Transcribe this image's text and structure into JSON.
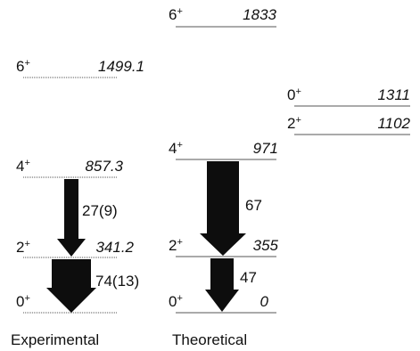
{
  "colors": {
    "ink": "#111111",
    "line": "#555555",
    "arrow": "#0d0d0d"
  },
  "panels": {
    "experimental": {
      "caption": "Experimental",
      "levels": [
        {
          "spin": "0",
          "parity": "+",
          "energy": "",
          "energy_value": 0
        },
        {
          "spin": "2",
          "parity": "+",
          "energy": "341.2",
          "energy_value": 341.2
        },
        {
          "spin": "4",
          "parity": "+",
          "energy": "857.3",
          "energy_value": 857.3
        },
        {
          "spin": "6",
          "parity": "+",
          "energy": "1499.1",
          "energy_value": 1499.1
        }
      ],
      "transitions": [
        {
          "from": "2+",
          "to": "0+",
          "be2": "74(13)",
          "be2_value": 74
        },
        {
          "from": "4+",
          "to": "2+",
          "be2": "27(9)",
          "be2_value": 27
        }
      ]
    },
    "theoretical": {
      "caption": "Theoretical",
      "levels": [
        {
          "spin": "0",
          "parity": "+",
          "energy": "0",
          "energy_value": 0
        },
        {
          "spin": "2",
          "parity": "+",
          "energy": "355",
          "energy_value": 355
        },
        {
          "spin": "4",
          "parity": "+",
          "energy": "971",
          "energy_value": 971
        },
        {
          "spin": "6",
          "parity": "+",
          "energy": "1833",
          "energy_value": 1833
        }
      ],
      "transitions": [
        {
          "from": "2+",
          "to": "0+",
          "be2": "47",
          "be2_value": 47
        },
        {
          "from": "4+",
          "to": "2+",
          "be2": "67",
          "be2_value": 67
        }
      ]
    },
    "theoretical_side": {
      "levels": [
        {
          "spin": "2",
          "parity": "+",
          "energy": "1102",
          "energy_value": 1102
        },
        {
          "spin": "0",
          "parity": "+",
          "energy": "1311",
          "energy_value": 1311
        }
      ]
    }
  }
}
